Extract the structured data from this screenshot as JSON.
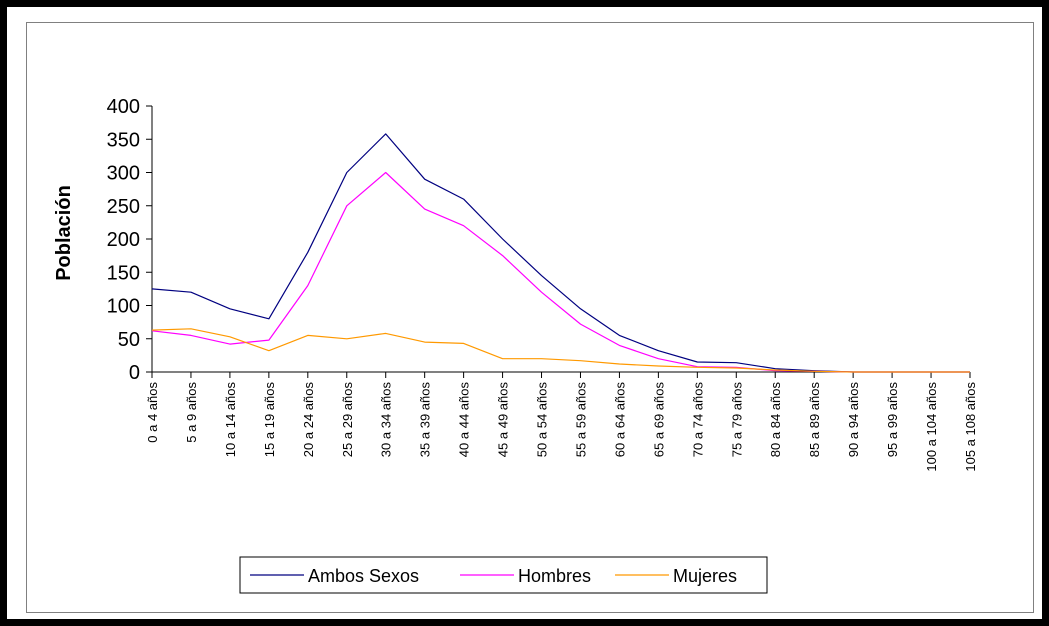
{
  "chart_data": {
    "type": "line",
    "title": "",
    "xlabel": "",
    "ylabel": "Población",
    "ylim": [
      0,
      400
    ],
    "yticks": [
      0,
      50,
      100,
      150,
      200,
      250,
      300,
      350,
      400
    ],
    "grid": false,
    "legend_position": "bottom",
    "categories": [
      "0 a 4 años",
      "5 a 9 años",
      "10 a 14 años",
      "15 a 19 años",
      "20 a 24 años",
      "25 a 29 años",
      "30 a 34 años",
      "35 a 39 años",
      "40 a 44 años",
      "45 a 49 años",
      "50 a 54 años",
      "55 a 59 años",
      "60 a 64 años",
      "65 a 69 años",
      "70 a 74 años",
      "75 a 79 años",
      "80 a 84 años",
      "85 a 89 años",
      "90 a 94 años",
      "95 a 99 años",
      "100 a 104 años",
      "105 a 108 años"
    ],
    "series": [
      {
        "name": "Ambos Sexos",
        "color": "#000080",
        "values": [
          125,
          120,
          95,
          80,
          180,
          300,
          358,
          290,
          260,
          200,
          145,
          95,
          55,
          32,
          15,
          14,
          5,
          2,
          0,
          0,
          0,
          0
        ]
      },
      {
        "name": "Hombres",
        "color": "#ff00ff",
        "values": [
          62,
          55,
          42,
          48,
          130,
          250,
          300,
          245,
          220,
          175,
          120,
          72,
          40,
          20,
          8,
          7,
          2,
          1,
          0,
          0,
          0,
          0
        ]
      },
      {
        "name": "Mujeres",
        "color": "#ff9900",
        "values": [
          63,
          65,
          53,
          32,
          55,
          50,
          58,
          45,
          43,
          20,
          20,
          17,
          12,
          9,
          7,
          6,
          3,
          1,
          0,
          0,
          0,
          0
        ]
      }
    ]
  }
}
